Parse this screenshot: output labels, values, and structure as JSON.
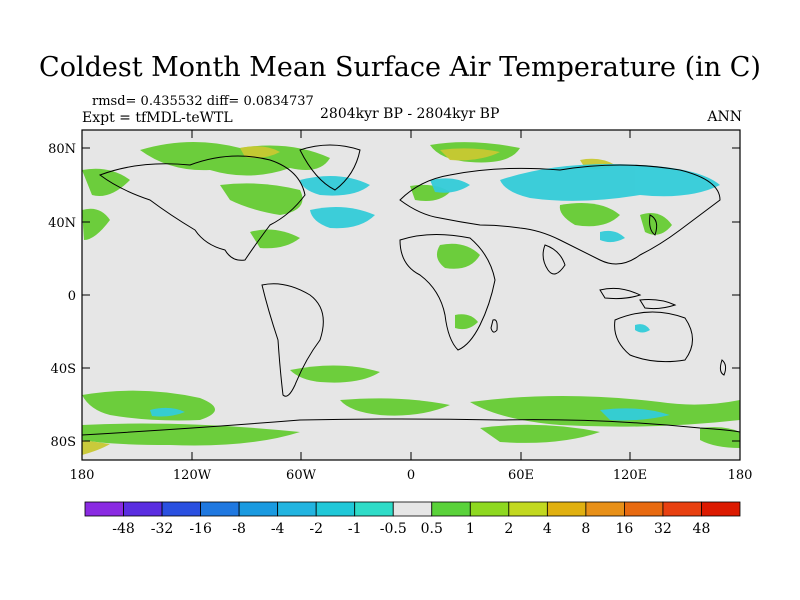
{
  "title": "Coldest Month Mean Surface Air Temperature (in C)",
  "stats": "rmsd= 0.435532  diff= 0.0834737",
  "experiment": "Expt = tfMDL-teWTL",
  "period": "2804kyr BP - 2804kyr BP",
  "season": "ANN",
  "axes": {
    "lat_ticks": [
      "80N",
      "40N",
      "0",
      "40S",
      "80S"
    ],
    "lon_ticks": [
      "180",
      "120W",
      "60W",
      "0",
      "60E",
      "120E",
      "180"
    ]
  },
  "colorbar": {
    "labels": [
      "-48",
      "-32",
      "-16",
      "-8",
      "-4",
      "-2",
      "-1",
      "-0.5",
      "0.5",
      "1",
      "2",
      "4",
      "8",
      "16",
      "32",
      "48"
    ],
    "colors": [
      "#8a2be2",
      "#5a2de0",
      "#2a50e0",
      "#1f78e0",
      "#1a9ae0",
      "#22b4e0",
      "#20c8d8",
      "#2fdcc8",
      "#e6e6e6",
      "#5ad23a",
      "#8ed820",
      "#c2d820",
      "#e0b010",
      "#e89018",
      "#e86a10",
      "#e84010",
      "#dc1a00"
    ]
  },
  "colors": {
    "land_green": "#66cc33",
    "anomaly_cyan": "#33ccd9",
    "anomaly_yellow": "#c8c832",
    "neutral": "#e6e6e6"
  }
}
